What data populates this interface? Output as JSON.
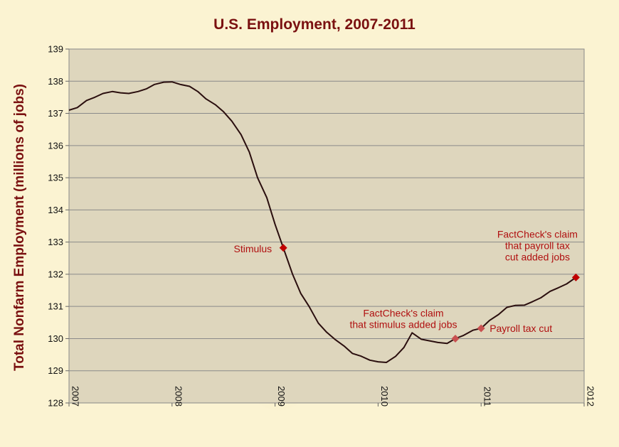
{
  "chart_data": {
    "type": "line",
    "title": "U.S. Employment,  2007-2011",
    "xlabel": "",
    "ylabel": "Total Nonfarm Employment (millions of jobs)",
    "xlim": [
      2007,
      2012
    ],
    "ylim": [
      128,
      139
    ],
    "yticks": [
      "128",
      "129",
      "130",
      "131",
      "132",
      "133",
      "134",
      "135",
      "136",
      "137",
      "138",
      "139"
    ],
    "xticks": [
      "2007",
      "2008",
      "2009",
      "2010",
      "2011",
      "2012"
    ],
    "grid": "horizontal",
    "colors": {
      "line": "#2a0e0e",
      "plot_bg": "#ded6bd",
      "marker_dark": "#c00000",
      "marker_light": "#c85050",
      "annotation": "#b01010",
      "title": "#7a1010"
    },
    "series": [
      {
        "values": [
          [
            2007.0,
            137.1
          ],
          [
            2007.08,
            137.18
          ],
          [
            2007.17,
            137.4
          ],
          [
            2007.25,
            137.5
          ],
          [
            2007.33,
            137.62
          ],
          [
            2007.42,
            137.68
          ],
          [
            2007.5,
            137.64
          ],
          [
            2007.58,
            137.62
          ],
          [
            2007.67,
            137.68
          ],
          [
            2007.75,
            137.76
          ],
          [
            2007.83,
            137.9
          ],
          [
            2007.92,
            137.97
          ],
          [
            2008.0,
            137.98
          ],
          [
            2008.08,
            137.9
          ],
          [
            2008.17,
            137.84
          ],
          [
            2008.25,
            137.68
          ],
          [
            2008.33,
            137.45
          ],
          [
            2008.42,
            137.27
          ],
          [
            2008.5,
            137.05
          ],
          [
            2008.58,
            136.76
          ],
          [
            2008.67,
            136.34
          ],
          [
            2008.75,
            135.8
          ],
          [
            2008.83,
            135.0
          ],
          [
            2008.92,
            134.38
          ],
          [
            2009.0,
            133.55
          ],
          [
            2009.08,
            132.82
          ],
          [
            2009.17,
            132.0
          ],
          [
            2009.25,
            131.4
          ],
          [
            2009.33,
            131.0
          ],
          [
            2009.42,
            130.48
          ],
          [
            2009.5,
            130.2
          ],
          [
            2009.58,
            129.98
          ],
          [
            2009.67,
            129.77
          ],
          [
            2009.75,
            129.54
          ],
          [
            2009.83,
            129.46
          ],
          [
            2009.92,
            129.33
          ],
          [
            2010.0,
            129.28
          ],
          [
            2010.08,
            129.26
          ],
          [
            2010.17,
            129.45
          ],
          [
            2010.25,
            129.72
          ],
          [
            2010.33,
            130.18
          ],
          [
            2010.42,
            129.98
          ],
          [
            2010.5,
            129.93
          ],
          [
            2010.58,
            129.88
          ],
          [
            2010.67,
            129.85
          ],
          [
            2010.75,
            130.0
          ],
          [
            2010.83,
            130.1
          ],
          [
            2010.92,
            130.26
          ],
          [
            2011.0,
            130.32
          ],
          [
            2011.08,
            130.56
          ],
          [
            2011.17,
            130.75
          ],
          [
            2011.25,
            130.97
          ],
          [
            2011.33,
            131.03
          ],
          [
            2011.42,
            131.04
          ],
          [
            2011.5,
            131.15
          ],
          [
            2011.58,
            131.27
          ],
          [
            2011.67,
            131.47
          ],
          [
            2011.75,
            131.58
          ],
          [
            2011.83,
            131.7
          ],
          [
            2011.92,
            131.9
          ]
        ]
      }
    ],
    "annotations": [
      {
        "x": 2009.08,
        "y": 132.82,
        "marker": "dark",
        "lines": [
          "Stimulus"
        ],
        "anchor": "end"
      },
      {
        "x": 2010.75,
        "y": 130.0,
        "marker": "light",
        "lines": [
          "FactCheck's claim",
          "that stimulus added jobs"
        ],
        "anchor": "middle"
      },
      {
        "x": 2011.0,
        "y": 130.32,
        "marker": "light",
        "lines": [
          "Payroll tax cut"
        ],
        "anchor": "start"
      },
      {
        "x": 2011.92,
        "y": 131.9,
        "marker": "dark",
        "lines": [
          "FactCheck's claim",
          "that payroll tax",
          "cut added jobs"
        ],
        "anchor": "middle"
      }
    ]
  }
}
